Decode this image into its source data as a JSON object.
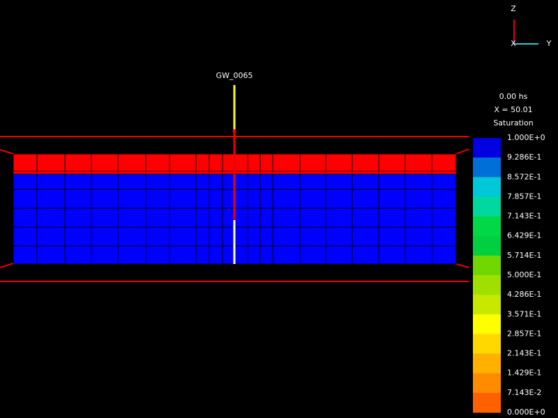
{
  "axes": {
    "z": "Z",
    "x": "X",
    "y": "Y"
  },
  "well": {
    "label": "GW_0065"
  },
  "info": {
    "time": "0.00 hs",
    "section": "X = 50.01",
    "variable": "Saturation"
  },
  "legend": {
    "labels": [
      "1.000E+0",
      "9.286E-1",
      "8.572E-1",
      "7.857E-1",
      "7.143E-1",
      "6.429E-1",
      "5.714E-1",
      "5.000E-1",
      "4.286E-1",
      "3.571E-1",
      "2.857E-1",
      "2.143E-1",
      "1.429E-1",
      "7.143E-2",
      "0.000E+0"
    ],
    "colors": [
      "#0000e0",
      "#0070d8",
      "#00c8d8",
      "#00d8a0",
      "#00d848",
      "#00d040",
      "#70d800",
      "#a0e000",
      "#c8e800",
      "#ffff00",
      "#ffd800",
      "#ffb000",
      "#ff8c00",
      "#ff6000",
      "#ff0000"
    ]
  }
}
